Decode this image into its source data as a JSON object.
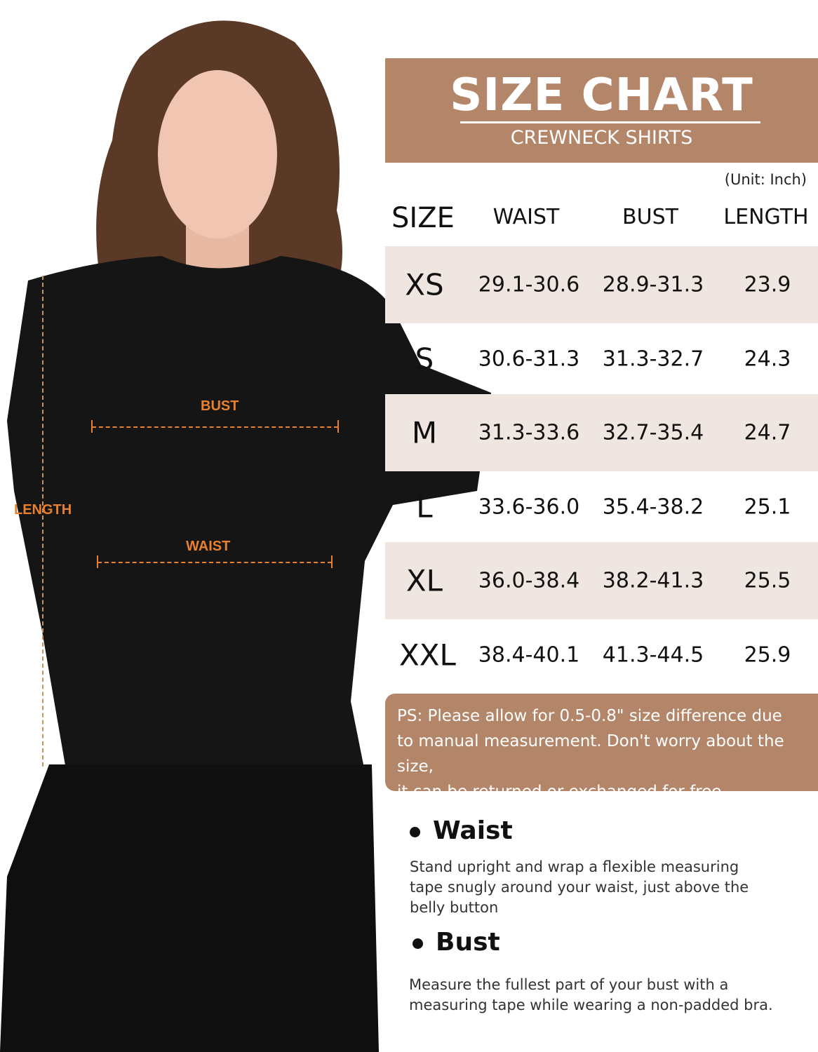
{
  "header": {
    "title": "SIZE CHART",
    "subtitle": "CREWNECK SHIRTS"
  },
  "unit": "(Unit: Inch)",
  "columns": [
    "SIZE",
    "WAIST",
    "BUST",
    "LENGTH"
  ],
  "rows": [
    {
      "size": "XS",
      "waist": "29.1-30.6",
      "bust": "28.9-31.3",
      "length": "23.9"
    },
    {
      "size": "S",
      "waist": "30.6-31.3",
      "bust": "31.3-32.7",
      "length": "24.3"
    },
    {
      "size": "M",
      "waist": "31.3-33.6",
      "bust": "32.7-35.4",
      "length": "24.7"
    },
    {
      "size": "L",
      "waist": "33.6-36.0",
      "bust": "35.4-38.2",
      "length": "25.1"
    },
    {
      "size": "XL",
      "waist": "36.0-38.4",
      "bust": "38.2-41.3",
      "length": "25.5"
    },
    {
      "size": "XXL",
      "waist": "38.4-40.1",
      "bust": "41.3-44.5",
      "length": "25.9"
    }
  ],
  "note": {
    "lines": [
      "PS: Please allow for 0.5-0.8\" size difference due",
      "to manual measurement. Don't worry about the size,",
      "it can be returned or exchanged for free"
    ]
  },
  "guide": [
    {
      "heading": "Waist",
      "text": "Stand upright and wrap a flexible measuring tape snugly around your waist, just above the belly button"
    },
    {
      "heading": "Bust",
      "text": "Measure the fullest part of your bust with a measuring tape while wearing a non-padded bra."
    }
  ],
  "photo_labels": {
    "bust": "BUST",
    "waist": "WAIST",
    "length": "LENGTH"
  },
  "colors": {
    "brand": "#b38669",
    "row_shade": "#f0e6e1",
    "measure_accent": "#e8802e"
  }
}
